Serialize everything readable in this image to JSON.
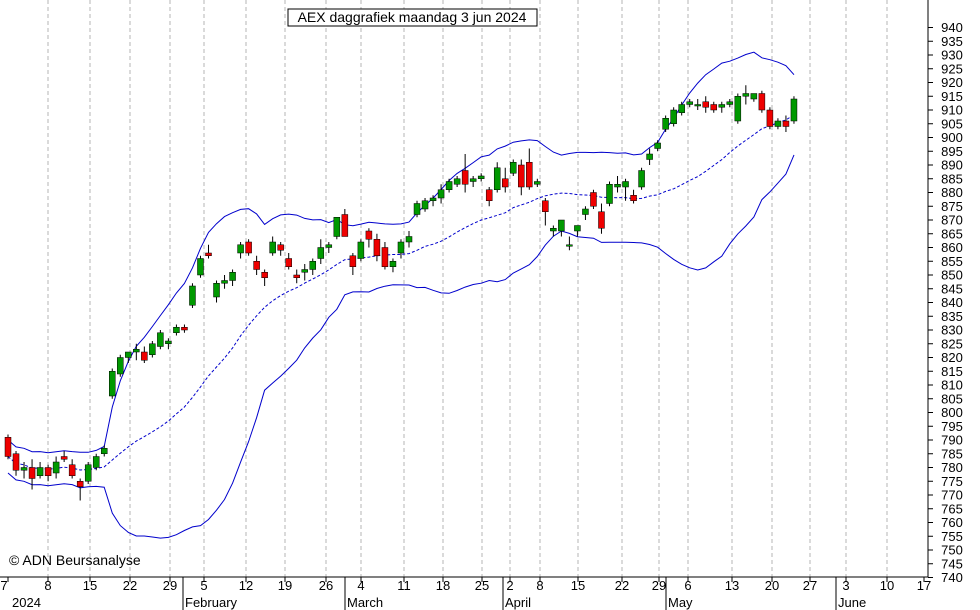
{
  "chart_data": {
    "type": "candlestick",
    "title": "AEX daggrafiek maandag 3 jun 2024",
    "watermark": "© ADN Beursanalyse",
    "yaxis": {
      "min": 740,
      "max": 940,
      "step": 5,
      "ticks": [
        740,
        745,
        750,
        755,
        760,
        765,
        770,
        775,
        780,
        785,
        790,
        795,
        800,
        805,
        810,
        815,
        820,
        825,
        830,
        835,
        840,
        845,
        850,
        855,
        860,
        865,
        870,
        875,
        880,
        885,
        890,
        895,
        900,
        905,
        910,
        915,
        920,
        925,
        930,
        935,
        940
      ]
    },
    "xaxis": {
      "day_labels": [
        "7",
        "8",
        "15",
        "22",
        "29",
        "5",
        "12",
        "19",
        "26",
        "4",
        "11",
        "18",
        "25",
        "2",
        "8",
        "15",
        "22",
        "29",
        "6",
        "13",
        "20",
        "27",
        "3",
        "10",
        "17"
      ],
      "month_labels": [
        "2024",
        "February",
        "March",
        "April",
        "May",
        "June"
      ]
    },
    "candles": [
      {
        "o": 791,
        "h": 792,
        "l": 783,
        "c": 784
      },
      {
        "o": 785,
        "h": 786,
        "l": 777,
        "c": 779
      },
      {
        "o": 779,
        "h": 782,
        "l": 776,
        "c": 780
      },
      {
        "o": 780,
        "h": 783,
        "l": 772,
        "c": 776
      },
      {
        "o": 777,
        "h": 782,
        "l": 776,
        "c": 780
      },
      {
        "o": 780,
        "h": 781,
        "l": 775,
        "c": 777
      },
      {
        "o": 778,
        "h": 784,
        "l": 776,
        "c": 782
      },
      {
        "o": 784,
        "h": 786,
        "l": 782,
        "c": 783
      },
      {
        "o": 781,
        "h": 783,
        "l": 776,
        "c": 777
      },
      {
        "o": 775,
        "h": 776,
        "l": 768,
        "c": 773
      },
      {
        "o": 775,
        "h": 782,
        "l": 774,
        "c": 781
      },
      {
        "o": 780,
        "h": 785,
        "l": 779,
        "c": 784
      },
      {
        "o": 785,
        "h": 788,
        "l": 784,
        "c": 787
      },
      {
        "o": 806,
        "h": 816,
        "l": 805,
        "c": 815
      },
      {
        "o": 814,
        "h": 821,
        "l": 813,
        "c": 820
      },
      {
        "o": 820,
        "h": 822,
        "l": 818,
        "c": 822
      },
      {
        "o": 822,
        "h": 825,
        "l": 819,
        "c": 823
      },
      {
        "o": 822,
        "h": 824,
        "l": 818,
        "c": 819
      },
      {
        "o": 821,
        "h": 826,
        "l": 820,
        "c": 825
      },
      {
        "o": 824,
        "h": 830,
        "l": 823,
        "c": 829
      },
      {
        "o": 825,
        "h": 827,
        "l": 823,
        "c": 826
      },
      {
        "o": 829,
        "h": 832,
        "l": 828,
        "c": 831
      },
      {
        "o": 831,
        "h": 832,
        "l": 829,
        "c": 830
      },
      {
        "o": 839,
        "h": 847,
        "l": 838,
        "c": 846
      },
      {
        "o": 850,
        "h": 857,
        "l": 849,
        "c": 856
      },
      {
        "o": 858,
        "h": 861,
        "l": 856,
        "c": 857
      },
      {
        "o": 842,
        "h": 848,
        "l": 840,
        "c": 847
      },
      {
        "o": 847,
        "h": 850,
        "l": 845,
        "c": 848
      },
      {
        "o": 848,
        "h": 852,
        "l": 846,
        "c": 851
      },
      {
        "o": 858,
        "h": 862,
        "l": 856,
        "c": 861
      },
      {
        "o": 862,
        "h": 863,
        "l": 857,
        "c": 858
      },
      {
        "o": 855,
        "h": 857,
        "l": 850,
        "c": 852
      },
      {
        "o": 851,
        "h": 852,
        "l": 846,
        "c": 849
      },
      {
        "o": 858,
        "h": 864,
        "l": 857,
        "c": 862
      },
      {
        "o": 861,
        "h": 862,
        "l": 857,
        "c": 859
      },
      {
        "o": 856,
        "h": 858,
        "l": 852,
        "c": 853
      },
      {
        "o": 850,
        "h": 852,
        "l": 847,
        "c": 849
      },
      {
        "o": 851,
        "h": 854,
        "l": 848,
        "c": 852
      },
      {
        "o": 852,
        "h": 856,
        "l": 850,
        "c": 855
      },
      {
        "o": 856,
        "h": 863,
        "l": 854,
        "c": 860
      },
      {
        "o": 860,
        "h": 862,
        "l": 858,
        "c": 861
      },
      {
        "o": 864,
        "h": 871,
        "l": 863,
        "c": 871
      },
      {
        "o": 872,
        "h": 874,
        "l": 864,
        "c": 864
      },
      {
        "o": 857,
        "h": 858,
        "l": 850,
        "c": 853
      },
      {
        "o": 856,
        "h": 863,
        "l": 855,
        "c": 862
      },
      {
        "o": 866,
        "h": 867,
        "l": 860,
        "c": 863
      },
      {
        "o": 863,
        "h": 865,
        "l": 855,
        "c": 857
      },
      {
        "o": 860,
        "h": 862,
        "l": 852,
        "c": 853
      },
      {
        "o": 853,
        "h": 856,
        "l": 851,
        "c": 855
      },
      {
        "o": 858,
        "h": 863,
        "l": 856,
        "c": 862
      },
      {
        "o": 862,
        "h": 866,
        "l": 860,
        "c": 864
      },
      {
        "o": 872,
        "h": 877,
        "l": 871,
        "c": 876
      },
      {
        "o": 874,
        "h": 878,
        "l": 873,
        "c": 877
      },
      {
        "o": 877,
        "h": 879,
        "l": 875,
        "c": 878
      },
      {
        "o": 878,
        "h": 883,
        "l": 876,
        "c": 881
      },
      {
        "o": 881,
        "h": 885,
        "l": 880,
        "c": 884
      },
      {
        "o": 883,
        "h": 886,
        "l": 882,
        "c": 885
      },
      {
        "o": 888,
        "h": 894,
        "l": 880,
        "c": 883
      },
      {
        "o": 884,
        "h": 886,
        "l": 882,
        "c": 885
      },
      {
        "o": 885,
        "h": 887,
        "l": 884,
        "c": 886
      },
      {
        "o": 881,
        "h": 882,
        "l": 875,
        "c": 877
      },
      {
        "o": 881,
        "h": 891,
        "l": 880,
        "c": 889
      },
      {
        "o": 885,
        "h": 889,
        "l": 880,
        "c": 882
      },
      {
        "o": 887,
        "h": 892,
        "l": 886,
        "c": 891
      },
      {
        "o": 890,
        "h": 892,
        "l": 879,
        "c": 882
      },
      {
        "o": 891,
        "h": 896,
        "l": 881,
        "c": 882
      },
      {
        "o": 883,
        "h": 885,
        "l": 882,
        "c": 884
      },
      {
        "o": 877,
        "h": 878,
        "l": 868,
        "c": 873
      },
      {
        "o": 866,
        "h": 868,
        "l": 864,
        "c": 867
      },
      {
        "o": 866,
        "h": 870,
        "l": 864,
        "c": 870
      },
      {
        "o": 861,
        "h": 864,
        "l": 859,
        "c": 861
      },
      {
        "o": 866,
        "h": 868,
        "l": 864,
        "c": 868
      },
      {
        "o": 872,
        "h": 875,
        "l": 870,
        "c": 874
      },
      {
        "o": 880,
        "h": 881,
        "l": 874,
        "c": 875
      },
      {
        "o": 873,
        "h": 876,
        "l": 865,
        "c": 867
      },
      {
        "o": 876,
        "h": 884,
        "l": 875,
        "c": 883
      },
      {
        "o": 882,
        "h": 886,
        "l": 880,
        "c": 883
      },
      {
        "o": 882,
        "h": 885,
        "l": 877,
        "c": 884
      },
      {
        "o": 879,
        "h": 881,
        "l": 876,
        "c": 877
      },
      {
        "o": 882,
        "h": 889,
        "l": 881,
        "c": 888
      },
      {
        "o": 892,
        "h": 896,
        "l": 890,
        "c": 894
      },
      {
        "o": 896,
        "h": 899,
        "l": 895,
        "c": 898
      },
      {
        "o": 903,
        "h": 908,
        "l": 902,
        "c": 907
      },
      {
        "o": 905,
        "h": 911,
        "l": 904,
        "c": 910
      },
      {
        "o": 909,
        "h": 913,
        "l": 908,
        "c": 912
      },
      {
        "o": 912,
        "h": 914,
        "l": 911,
        "c": 913
      },
      {
        "o": 912,
        "h": 914,
        "l": 910,
        "c": 912
      },
      {
        "o": 913,
        "h": 915,
        "l": 909,
        "c": 911
      },
      {
        "o": 912,
        "h": 913,
        "l": 909,
        "c": 910
      },
      {
        "o": 911,
        "h": 913,
        "l": 909,
        "c": 912
      },
      {
        "o": 912,
        "h": 914,
        "l": 911,
        "c": 913
      },
      {
        "o": 906,
        "h": 916,
        "l": 905,
        "c": 915
      },
      {
        "o": 915,
        "h": 919,
        "l": 912,
        "c": 916
      },
      {
        "o": 914,
        "h": 916,
        "l": 913,
        "c": 916
      },
      {
        "o": 916,
        "h": 917,
        "l": 909,
        "c": 910
      },
      {
        "o": 910,
        "h": 911,
        "l": 903,
        "c": 904
      },
      {
        "o": 904,
        "h": 907,
        "l": 903,
        "c": 906
      },
      {
        "o": 906,
        "h": 908,
        "l": 902,
        "c": 904
      },
      {
        "o": 906,
        "h": 915,
        "l": 905,
        "c": 914
      }
    ],
    "colors": {
      "up": "#009900",
      "down": "#ee0000",
      "bands": "#0000cc",
      "grid": "#b4b4b4",
      "axis": "#000000"
    }
  }
}
